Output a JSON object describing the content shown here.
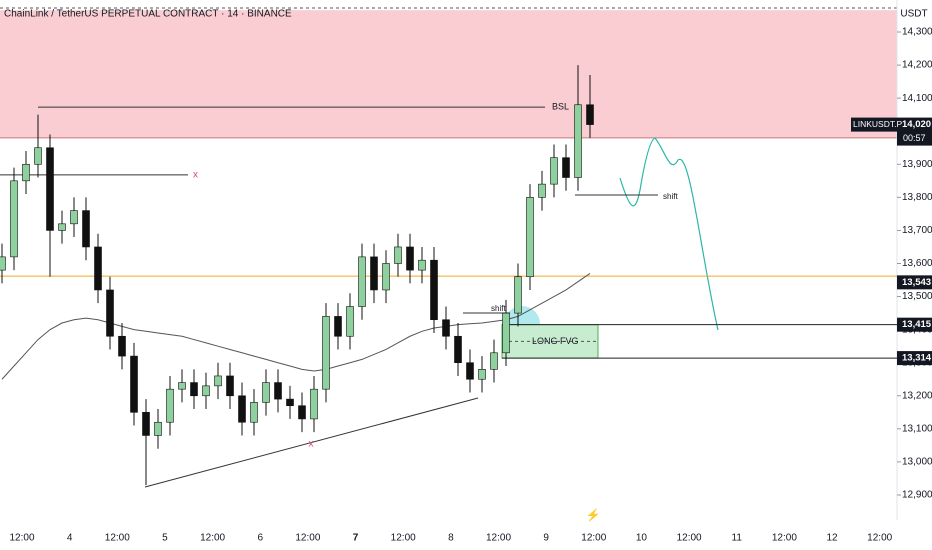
{
  "chart_data": {
    "type": "candlestick",
    "title": "ChainLink / TetherUS PERPETUAL CONTRACT · 14 · BINANCE",
    "currency": "USDT",
    "ylim": [
      12850,
      14390
    ],
    "yticks": [
      {
        "value": 14300,
        "label": "14,300"
      },
      {
        "value": 14200,
        "label": "14,200"
      },
      {
        "value": 14100,
        "label": "14,100"
      },
      {
        "value": 14000,
        "label": "14,000"
      },
      {
        "value": 13900,
        "label": "13,900"
      },
      {
        "value": 13800,
        "label": "13,800"
      },
      {
        "value": 13700,
        "label": "13,700"
      },
      {
        "value": 13600,
        "label": "13,600"
      },
      {
        "value": 13500,
        "label": "13,500"
      },
      {
        "value": 13400,
        "label": "13,400"
      },
      {
        "value": 13300,
        "label": "13,300"
      },
      {
        "value": 13200,
        "label": "13,200"
      },
      {
        "value": 13100,
        "label": "13,100"
      },
      {
        "value": 13000,
        "label": "13,000"
      },
      {
        "value": 12900,
        "label": "12,900"
      }
    ],
    "xticks": [
      "12:00",
      "4",
      "12:00",
      "5",
      "12:00",
      "6",
      "12:00",
      "7",
      "12:00",
      "8",
      "12:00",
      "9",
      "12:00",
      "10",
      "12:00",
      "11",
      "12:00",
      "12",
      "12:00"
    ],
    "open": [
      13580,
      13620,
      13850,
      13900,
      13950,
      13700,
      13720,
      13760,
      13650,
      13520,
      13380,
      13320,
      13150,
      13080,
      13120,
      13220,
      13240,
      13200,
      13230,
      13260,
      13200,
      13120,
      13180,
      13240,
      13190,
      13170,
      13130,
      13220,
      13440,
      13380,
      13470,
      13620,
      13520,
      13600,
      13650,
      13580,
      13610,
      13430,
      13380,
      13300,
      13250,
      13280,
      13330,
      13450,
      13560,
      13800,
      13840,
      13920,
      13860,
      14080
    ],
    "high": [
      13660,
      13890,
      13940,
      14050,
      13990,
      13760,
      13800,
      13800,
      13690,
      13560,
      13420,
      13360,
      13190,
      13160,
      13260,
      13280,
      13280,
      13270,
      13300,
      13300,
      13240,
      13220,
      13280,
      13280,
      13230,
      13210,
      13260,
      13480,
      13480,
      13510,
      13660,
      13660,
      13640,
      13690,
      13690,
      13650,
      13650,
      13470,
      13420,
      13340,
      13320,
      13370,
      13490,
      13600,
      13840,
      13880,
      13960,
      13960,
      14200,
      14170
    ],
    "low": [
      13540,
      13580,
      13810,
      13860,
      13560,
      13660,
      13680,
      13610,
      13480,
      13340,
      13280,
      13110,
      12930,
      13040,
      13080,
      13180,
      13160,
      13160,
      13190,
      13160,
      13080,
      13080,
      13140,
      13150,
      13130,
      13090,
      13090,
      13180,
      13340,
      13340,
      13430,
      13480,
      13480,
      13560,
      13540,
      13540,
      13390,
      13340,
      13260,
      13210,
      13210,
      13240,
      13290,
      13410,
      13520,
      13760,
      13800,
      13820,
      13820,
      13980
    ],
    "close": [
      13620,
      13850,
      13900,
      13950,
      13700,
      13720,
      13760,
      13650,
      13520,
      13380,
      13320,
      13150,
      13080,
      13120,
      13220,
      13240,
      13200,
      13230,
      13260,
      13200,
      13120,
      13180,
      13240,
      13190,
      13170,
      13130,
      13220,
      13440,
      13380,
      13470,
      13620,
      13520,
      13600,
      13650,
      13580,
      13610,
      13430,
      13380,
      13300,
      13250,
      13280,
      13330,
      13450,
      13560,
      13800,
      13840,
      13920,
      13860,
      14080,
      14020
    ],
    "moving_average": [
      13250,
      13290,
      13330,
      13370,
      13400,
      13420,
      13430,
      13435,
      13430,
      13420,
      13410,
      13400,
      13395,
      13390,
      13385,
      13380,
      13370,
      13360,
      13350,
      13340,
      13330,
      13320,
      13310,
      13300,
      13290,
      13280,
      13275,
      13280,
      13290,
      13300,
      13310,
      13325,
      13340,
      13360,
      13380,
      13395,
      13405,
      13410,
      13415,
      13418,
      13420,
      13425,
      13430,
      13440,
      13460,
      13480,
      13500,
      13520,
      13545,
      13570
    ],
    "up_color": "#8fd19e",
    "down_color": "#111111",
    "zone": {
      "high": 14366,
      "low": 13980,
      "color": "#f9cdd1"
    },
    "bsl": {
      "label": "BSL",
      "value": 14073
    },
    "x_level": {
      "label": "x",
      "value": 13868
    },
    "trend_label": "x",
    "shift_labels": [
      "shift",
      "shift"
    ],
    "level_line": {
      "value": 13562,
      "color": "#f5a623"
    },
    "fvg": {
      "label": "LONG FVG",
      "high": 13415,
      "low": 13314
    },
    "symbol": "LINKUSDT.P",
    "countdown": "00:57",
    "price_labels": [
      {
        "value": 14020,
        "label": "14,020"
      },
      {
        "value": 13543,
        "label": "13,543"
      },
      {
        "value": 13415,
        "label": "13,415"
      },
      {
        "value": 13314,
        "label": "13,314"
      }
    ]
  }
}
